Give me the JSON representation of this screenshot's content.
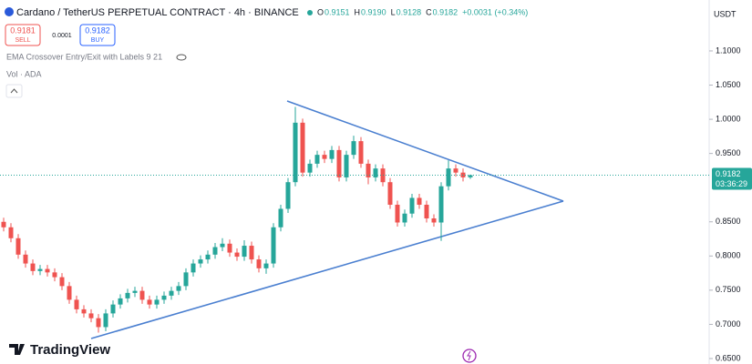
{
  "chart_data": {
    "type": "candlestick",
    "title": "Cardano / TetherUS PERPETUAL CONTRACT · 4h · BINANCE",
    "ohlc_legend": [
      {
        "key": "O",
        "text": "0.9151"
      },
      {
        "key": "H",
        "text": "0.9190"
      },
      {
        "key": "L",
        "text": "0.9128"
      },
      {
        "key": "C",
        "text": "0.9182"
      }
    ],
    "change": "+0.0031 (+0.34%)",
    "sell": {
      "price": "0.9181",
      "label": "SELL"
    },
    "spread": "0.0001",
    "buy": {
      "price": "0.9182",
      "label": "BUY"
    },
    "indicators": [
      "EMA Crossover Entry/Exit with Labels 9 21",
      "Vol · ADA"
    ],
    "currency": "USDT",
    "brand": "TradingView",
    "last_price": 0.9182,
    "countdown": "03:36:29",
    "up_color": "#26a69a",
    "down_color": "#ef5350",
    "ylim": [
      0.642,
      1.1745
    ],
    "yticks": [
      {
        "value": 0.65,
        "label": "0.6500"
      },
      {
        "value": 0.7,
        "label": "0.7000"
      },
      {
        "value": 0.75,
        "label": "0.7500"
      },
      {
        "value": 0.8,
        "label": "0.8000"
      },
      {
        "value": 0.85,
        "label": "0.8500"
      },
      {
        "value": 0.95,
        "label": "0.9500"
      },
      {
        "value": 1.0,
        "label": "1.0000"
      },
      {
        "value": 1.05,
        "label": "1.0500"
      },
      {
        "value": 1.1,
        "label": "1.1000"
      }
    ],
    "open": [
      0.85,
      0.842,
      0.826,
      0.802,
      0.789,
      0.778,
      0.781,
      0.776,
      0.769,
      0.756,
      0.736,
      0.722,
      0.716,
      0.709,
      0.696,
      0.716,
      0.729,
      0.738,
      0.746,
      0.749,
      0.736,
      0.729,
      0.736,
      0.742,
      0.749,
      0.756,
      0.776,
      0.789,
      0.795,
      0.802,
      0.813,
      0.818,
      0.805,
      0.799,
      0.815,
      0.795,
      0.782,
      0.789,
      0.842,
      0.869,
      0.908,
      0.995,
      0.922,
      0.935,
      0.948,
      0.942,
      0.955,
      0.915,
      0.948,
      0.968,
      0.935,
      0.915,
      0.928,
      0.908,
      0.875,
      0.849,
      0.862,
      0.885,
      0.875,
      0.855,
      0.849,
      0.902,
      0.928,
      0.922,
      0.9151
    ],
    "high": [
      0.856,
      0.848,
      0.832,
      0.808,
      0.795,
      0.787,
      0.787,
      0.782,
      0.775,
      0.762,
      0.742,
      0.728,
      0.722,
      0.715,
      0.722,
      0.735,
      0.744,
      0.752,
      0.755,
      0.755,
      0.742,
      0.742,
      0.748,
      0.755,
      0.762,
      0.782,
      0.795,
      0.801,
      0.808,
      0.819,
      0.826,
      0.824,
      0.811,
      0.823,
      0.821,
      0.801,
      0.795,
      0.848,
      0.875,
      0.914,
      1.018,
      1.001,
      0.941,
      0.954,
      0.954,
      0.961,
      0.961,
      0.954,
      0.976,
      0.974,
      0.941,
      0.934,
      0.934,
      0.914,
      0.881,
      0.868,
      0.891,
      0.891,
      0.881,
      0.861,
      0.908,
      0.94,
      0.934,
      0.928,
      0.919
    ],
    "low": [
      0.836,
      0.82,
      0.796,
      0.783,
      0.772,
      0.772,
      0.77,
      0.763,
      0.75,
      0.73,
      0.716,
      0.71,
      0.703,
      0.688,
      0.69,
      0.71,
      0.723,
      0.732,
      0.74,
      0.73,
      0.723,
      0.723,
      0.73,
      0.736,
      0.743,
      0.75,
      0.77,
      0.783,
      0.789,
      0.796,
      0.807,
      0.799,
      0.793,
      0.793,
      0.789,
      0.776,
      0.774,
      0.783,
      0.836,
      0.863,
      0.902,
      0.916,
      0.916,
      0.929,
      0.936,
      0.936,
      0.909,
      0.909,
      0.942,
      0.929,
      0.905,
      0.909,
      0.902,
      0.869,
      0.843,
      0.843,
      0.856,
      0.869,
      0.849,
      0.843,
      0.822,
      0.896,
      0.916,
      0.909,
      0.9128
    ],
    "close": [
      0.842,
      0.826,
      0.802,
      0.789,
      0.778,
      0.781,
      0.776,
      0.769,
      0.756,
      0.736,
      0.722,
      0.716,
      0.709,
      0.696,
      0.716,
      0.729,
      0.738,
      0.746,
      0.749,
      0.736,
      0.729,
      0.736,
      0.742,
      0.749,
      0.756,
      0.776,
      0.789,
      0.795,
      0.802,
      0.813,
      0.818,
      0.805,
      0.799,
      0.815,
      0.795,
      0.782,
      0.789,
      0.842,
      0.869,
      0.908,
      0.995,
      0.922,
      0.935,
      0.948,
      0.942,
      0.955,
      0.915,
      0.948,
      0.968,
      0.935,
      0.915,
      0.928,
      0.908,
      0.875,
      0.849,
      0.862,
      0.885,
      0.875,
      0.855,
      0.849,
      0.902,
      0.928,
      0.922,
      0.915,
      0.9182
    ]
  }
}
